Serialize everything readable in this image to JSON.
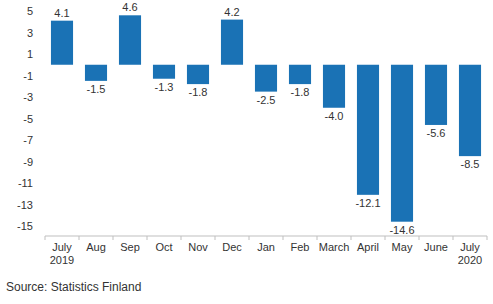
{
  "chart_data": {
    "type": "bar",
    "categories": [
      "July 2019",
      "Aug",
      "Sep",
      "Oct",
      "Nov",
      "Dec",
      "Jan",
      "Feb",
      "March",
      "April",
      "May",
      "June",
      "July 2020"
    ],
    "values": [
      4.1,
      -1.5,
      4.6,
      -1.3,
      -1.8,
      4.2,
      -2.5,
      -1.8,
      -4.0,
      -12.1,
      -14.6,
      -5.6,
      -8.5
    ],
    "value_labels": [
      "4.1",
      "-1.5",
      "4.6",
      "-1.3",
      "-1.8",
      "4.2",
      "-2.5",
      "-1.8",
      "-4.0",
      "-12.1",
      "-14.6",
      "-5.6",
      "-8.5"
    ],
    "color": "#1a72b5",
    "ylim": [
      -15,
      5
    ],
    "yticks": [
      5,
      3,
      1,
      -1,
      -3,
      -5,
      -7,
      -9,
      -11,
      -13,
      -15
    ],
    "grid": false,
    "data_labels": true,
    "source": "Source: Statistics Finland"
  }
}
